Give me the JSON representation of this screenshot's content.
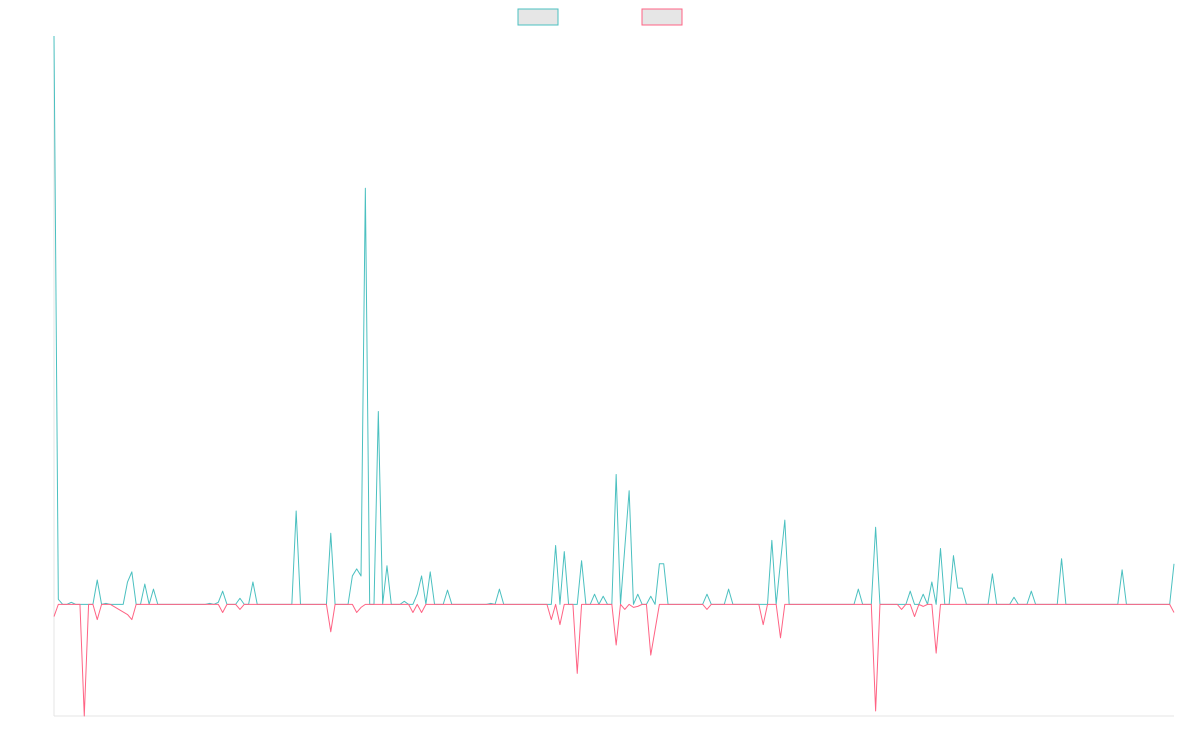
{
  "chart_data": {
    "type": "line",
    "title": "",
    "xlabel": "",
    "ylabel": "",
    "grid": false,
    "legend": "top-center",
    "ylim": [
      -110,
      560
    ],
    "x_count": 260,
    "series": [
      {
        "color": "#4bc0c0",
        "fill": "#e6e6e6",
        "points": [
          [
            0,
            560
          ],
          [
            1,
            5
          ],
          [
            2,
            0
          ],
          [
            3,
            0
          ],
          [
            4,
            2
          ],
          [
            5,
            0
          ],
          [
            6,
            0
          ],
          [
            7,
            0
          ],
          [
            8,
            0
          ],
          [
            9,
            0
          ],
          [
            10,
            24
          ],
          [
            11,
            0
          ],
          [
            12,
            1
          ],
          [
            13,
            0
          ],
          [
            14,
            0
          ],
          [
            15,
            0
          ],
          [
            16,
            0
          ],
          [
            17,
            22
          ],
          [
            18,
            32
          ],
          [
            19,
            0
          ],
          [
            20,
            0
          ],
          [
            21,
            20
          ],
          [
            22,
            0
          ],
          [
            23,
            15
          ],
          [
            24,
            0
          ],
          [
            30,
            0
          ],
          [
            31,
            0
          ],
          [
            35,
            0
          ],
          [
            36,
            1
          ],
          [
            37,
            0
          ],
          [
            38,
            2
          ],
          [
            39,
            13
          ],
          [
            40,
            0
          ],
          [
            42,
            0
          ],
          [
            43,
            6
          ],
          [
            44,
            0
          ],
          [
            45,
            0
          ],
          [
            46,
            22
          ],
          [
            47,
            0
          ],
          [
            55,
            0
          ],
          [
            56,
            92
          ],
          [
            57,
            0
          ],
          [
            63,
            0
          ],
          [
            64,
            70
          ],
          [
            65,
            0
          ],
          [
            68,
            0
          ],
          [
            69,
            28
          ],
          [
            70,
            35
          ],
          [
            71,
            28
          ],
          [
            72,
            410
          ],
          [
            73,
            0
          ],
          [
            74,
            0
          ],
          [
            75,
            190
          ],
          [
            76,
            0
          ],
          [
            77,
            38
          ],
          [
            78,
            0
          ],
          [
            80,
            0
          ],
          [
            81,
            3
          ],
          [
            82,
            0
          ],
          [
            83,
            0
          ],
          [
            84,
            10
          ],
          [
            85,
            28
          ],
          [
            86,
            0
          ],
          [
            87,
            32
          ],
          [
            88,
            0
          ],
          [
            89,
            0
          ],
          [
            90,
            0
          ],
          [
            91,
            14
          ],
          [
            92,
            0
          ],
          [
            100,
            0
          ],
          [
            101,
            1
          ],
          [
            102,
            0
          ],
          [
            103,
            15
          ],
          [
            104,
            0
          ],
          [
            115,
            0
          ],
          [
            116,
            58
          ],
          [
            117,
            0
          ],
          [
            118,
            52
          ],
          [
            119,
            0
          ],
          [
            121,
            0
          ],
          [
            122,
            43
          ],
          [
            123,
            0
          ],
          [
            124,
            0
          ],
          [
            125,
            10
          ],
          [
            126,
            0
          ],
          [
            127,
            8
          ],
          [
            128,
            0
          ],
          [
            129,
            0
          ],
          [
            130,
            128
          ],
          [
            131,
            0
          ],
          [
            133,
            112
          ],
          [
            134,
            0
          ],
          [
            135,
            10
          ],
          [
            136,
            0
          ],
          [
            137,
            0
          ],
          [
            138,
            8
          ],
          [
            139,
            0
          ],
          [
            140,
            40
          ],
          [
            141,
            40
          ],
          [
            142,
            0
          ],
          [
            150,
            0
          ],
          [
            151,
            10
          ],
          [
            152,
            0
          ],
          [
            155,
            0
          ],
          [
            156,
            15
          ],
          [
            157,
            0
          ],
          [
            165,
            0
          ],
          [
            166,
            63
          ],
          [
            167,
            0
          ],
          [
            169,
            83
          ],
          [
            170,
            0
          ],
          [
            185,
            0
          ],
          [
            186,
            15
          ],
          [
            187,
            0
          ],
          [
            189,
            0
          ],
          [
            190,
            76
          ],
          [
            191,
            0
          ],
          [
            197,
            0
          ],
          [
            198,
            13
          ],
          [
            199,
            0
          ],
          [
            200,
            0
          ],
          [
            201,
            10
          ],
          [
            202,
            0
          ],
          [
            203,
            22
          ],
          [
            204,
            0
          ],
          [
            205,
            55
          ],
          [
            206,
            0
          ],
          [
            207,
            0
          ],
          [
            208,
            48
          ],
          [
            209,
            16
          ],
          [
            210,
            16
          ],
          [
            211,
            0
          ],
          [
            216,
            0
          ],
          [
            217,
            30
          ],
          [
            218,
            0
          ],
          [
            221,
            0
          ],
          [
            222,
            7
          ],
          [
            223,
            0
          ],
          [
            225,
            0
          ],
          [
            226,
            13
          ],
          [
            227,
            0
          ],
          [
            232,
            0
          ],
          [
            233,
            45
          ],
          [
            234,
            0
          ],
          [
            246,
            0
          ],
          [
            247,
            34
          ],
          [
            248,
            0
          ],
          [
            258,
            0
          ],
          [
            259,
            40
          ]
        ]
      },
      {
        "color": "#ff6384",
        "fill": "#e6e6e6",
        "points": [
          [
            0,
            -12
          ],
          [
            1,
            0
          ],
          [
            2,
            0
          ],
          [
            3,
            0
          ],
          [
            4,
            0
          ],
          [
            5,
            0
          ],
          [
            6,
            0
          ],
          [
            7,
            -110
          ],
          [
            8,
            0
          ],
          [
            9,
            0
          ],
          [
            10,
            -15
          ],
          [
            11,
            0
          ],
          [
            12,
            0
          ],
          [
            13,
            0
          ],
          [
            17,
            -10
          ],
          [
            18,
            -15
          ],
          [
            19,
            0
          ],
          [
            38,
            0
          ],
          [
            39,
            -8
          ],
          [
            40,
            0
          ],
          [
            42,
            0
          ],
          [
            43,
            -5
          ],
          [
            44,
            0
          ],
          [
            63,
            0
          ],
          [
            64,
            -27
          ],
          [
            65,
            0
          ],
          [
            69,
            0
          ],
          [
            70,
            -8
          ],
          [
            71,
            -3
          ],
          [
            72,
            0
          ],
          [
            82,
            0
          ],
          [
            83,
            -8
          ],
          [
            84,
            0
          ],
          [
            85,
            -8
          ],
          [
            86,
            0
          ],
          [
            114,
            0
          ],
          [
            115,
            -15
          ],
          [
            116,
            0
          ],
          [
            117,
            -20
          ],
          [
            118,
            0
          ],
          [
            120,
            0
          ],
          [
            121,
            -68
          ],
          [
            122,
            0
          ],
          [
            129,
            0
          ],
          [
            130,
            -40
          ],
          [
            131,
            0
          ],
          [
            132,
            -5
          ],
          [
            133,
            0
          ],
          [
            134,
            -3
          ],
          [
            135,
            -2
          ],
          [
            136,
            0
          ],
          [
            137,
            0
          ],
          [
            138,
            -50
          ],
          [
            139,
            -25
          ],
          [
            140,
            0
          ],
          [
            150,
            0
          ],
          [
            151,
            -5
          ],
          [
            152,
            0
          ],
          [
            163,
            0
          ],
          [
            164,
            -20
          ],
          [
            165,
            0
          ],
          [
            167,
            0
          ],
          [
            168,
            -33
          ],
          [
            169,
            0
          ],
          [
            189,
            0
          ],
          [
            190,
            -105
          ],
          [
            191,
            0
          ],
          [
            195,
            0
          ],
          [
            196,
            -5
          ],
          [
            197,
            0
          ],
          [
            198,
            0
          ],
          [
            199,
            -12
          ],
          [
            200,
            0
          ],
          [
            201,
            -2
          ],
          [
            202,
            0
          ],
          [
            203,
            0
          ],
          [
            204,
            -48
          ],
          [
            205,
            0
          ],
          [
            258,
            0
          ],
          [
            259,
            -8
          ]
        ]
      }
    ]
  }
}
